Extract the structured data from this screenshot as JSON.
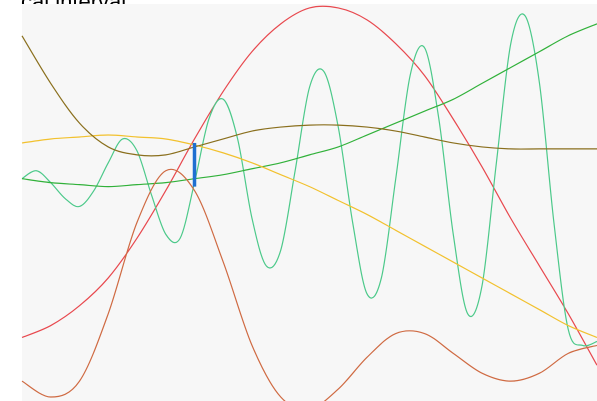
{
  "title_fragment": "cal interval.",
  "chart_data": {
    "type": "line",
    "title": "",
    "xlabel": "",
    "ylabel": "",
    "xlim": [
      0,
      100
    ],
    "ylim": [
      0,
      100
    ],
    "grid": false,
    "legend": "none",
    "series": [
      {
        "color": "#e8484e",
        "x": [
          0,
          5,
          10,
          15,
          20,
          25,
          30,
          35,
          40,
          45,
          50,
          55,
          60,
          65,
          70,
          75,
          80,
          85,
          90,
          95,
          100
        ],
        "y": [
          16,
          19,
          24,
          31,
          41,
          53,
          66,
          78,
          88,
          95,
          99,
          99,
          96,
          90,
          82,
          71,
          59,
          46,
          34,
          22,
          9
        ]
      },
      {
        "color": "#4cc98a",
        "x": [
          0,
          2.5,
          5,
          7.5,
          10,
          12.5,
          15,
          17.5,
          20,
          22.5,
          25,
          27.5,
          30,
          32.5,
          35,
          37.5,
          40,
          42.5,
          45,
          47.5,
          50,
          52.5,
          55,
          57.5,
          60,
          62.5,
          65,
          67.5,
          70,
          72.5,
          75,
          77.5,
          80,
          82.5,
          85,
          87.5,
          90,
          92.5,
          95,
          97.5,
          100
        ],
        "y": [
          56,
          58,
          55,
          51,
          49,
          53,
          60,
          66,
          63,
          52,
          42,
          41,
          55,
          71,
          76,
          66,
          46,
          34,
          38,
          58,
          79,
          83,
          69,
          45,
          27,
          31,
          56,
          82,
          89,
          71,
          42,
          22,
          29,
          60,
          90,
          97,
          80,
          45,
          18,
          14,
          15
        ]
      },
      {
        "color": "#31b13a",
        "x": [
          0,
          5,
          10,
          15,
          20,
          25,
          30,
          35,
          40,
          45,
          50,
          55,
          60,
          65,
          70,
          75,
          80,
          85,
          90,
          95,
          100
        ],
        "y": [
          56,
          55,
          54.5,
          54,
          54.5,
          55,
          56,
          57,
          58.5,
          60,
          62,
          64,
          67,
          70,
          73,
          76,
          80,
          84,
          88,
          92,
          95
        ]
      },
      {
        "color": "#f2c12e",
        "x": [
          0,
          5,
          10,
          15,
          20,
          25,
          30,
          35,
          40,
          45,
          50,
          55,
          60,
          65,
          70,
          75,
          80,
          85,
          90,
          95,
          100
        ],
        "y": [
          65,
          66,
          66.5,
          67,
          66.5,
          66,
          64.5,
          62.5,
          60,
          57,
          54,
          50.5,
          47,
          43,
          39,
          35,
          31,
          27,
          23,
          19,
          16
        ]
      },
      {
        "color": "#8a6f1d",
        "x": [
          0,
          5,
          10,
          15,
          20,
          25,
          30,
          35,
          40,
          45,
          50,
          55,
          60,
          65,
          70,
          75,
          80,
          85,
          90,
          95,
          100
        ],
        "y": [
          92,
          80,
          70,
          64,
          62,
          62,
          64,
          66,
          68,
          69,
          69.5,
          69.5,
          69,
          68,
          66.5,
          65,
          64,
          63.5,
          63.5,
          63.5,
          63.5
        ]
      },
      {
        "color": "#cf6a42",
        "x": [
          0,
          5,
          10,
          15,
          20,
          25,
          30,
          35,
          40,
          45,
          50,
          55,
          60,
          65,
          70,
          75,
          80,
          85,
          90,
          95,
          100
        ],
        "y": [
          5,
          1,
          5,
          22,
          45,
          58,
          53,
          35,
          14,
          1,
          -2,
          3,
          11,
          17,
          17,
          12,
          7,
          5,
          7,
          12,
          14
        ]
      }
    ],
    "annotations": [
      {
        "type": "vertical-marker",
        "x": 30,
        "y_range": [
          54,
          65
        ],
        "color": "#1f6fd1"
      }
    ]
  }
}
